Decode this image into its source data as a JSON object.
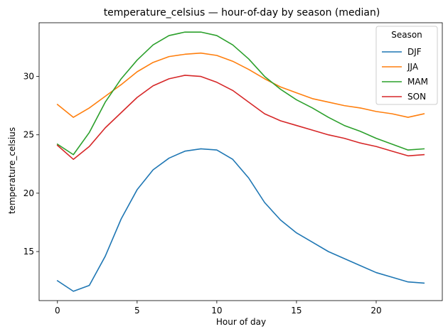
{
  "chart_data": {
    "type": "line",
    "title": "temperature_celsius — hour-of-day by season (median)",
    "xlabel": "Hour of day",
    "ylabel": "temperature_celsius",
    "xlim": [
      -1.15,
      24.15
    ],
    "ylim": [
      10.8,
      34.6
    ],
    "xticks": [
      0,
      5,
      10,
      15,
      20
    ],
    "yticks": [
      15,
      20,
      25,
      30
    ],
    "grid": false,
    "legend": {
      "title": "Season",
      "placement": "top-right"
    },
    "x": [
      0,
      1,
      2,
      3,
      4,
      5,
      6,
      7,
      8,
      9,
      10,
      11,
      12,
      13,
      14,
      15,
      16,
      17,
      18,
      19,
      20,
      21,
      22,
      23
    ],
    "series": [
      {
        "name": "DJF",
        "color": "#1f77b4",
        "values": [
          12.5,
          11.6,
          12.1,
          14.6,
          17.8,
          20.3,
          22.0,
          23.0,
          23.6,
          23.8,
          23.7,
          22.9,
          21.3,
          19.2,
          17.7,
          16.6,
          15.8,
          15.0,
          14.4,
          13.8,
          13.2,
          12.8,
          12.4,
          12.3
        ]
      },
      {
        "name": "JJA",
        "color": "#ff7f0e",
        "values": [
          27.6,
          26.5,
          27.3,
          28.3,
          29.3,
          30.4,
          31.2,
          31.7,
          31.9,
          32.0,
          31.8,
          31.3,
          30.6,
          29.8,
          29.1,
          28.6,
          28.1,
          27.8,
          27.5,
          27.3,
          27.0,
          26.8,
          26.5,
          26.8
        ]
      },
      {
        "name": "MAM",
        "color": "#2ca02c",
        "values": [
          24.2,
          23.3,
          25.2,
          27.8,
          29.8,
          31.4,
          32.7,
          33.5,
          33.8,
          33.8,
          33.5,
          32.7,
          31.5,
          30.0,
          28.9,
          28.0,
          27.3,
          26.5,
          25.8,
          25.3,
          24.7,
          24.2,
          23.7,
          23.8
        ]
      },
      {
        "name": "SON",
        "color": "#d62728",
        "values": [
          24.1,
          22.9,
          24.0,
          25.6,
          26.9,
          28.2,
          29.2,
          29.8,
          30.1,
          30.0,
          29.5,
          28.8,
          27.8,
          26.8,
          26.2,
          25.8,
          25.4,
          25.0,
          24.7,
          24.3,
          24.0,
          23.6,
          23.2,
          23.3
        ]
      }
    ]
  }
}
